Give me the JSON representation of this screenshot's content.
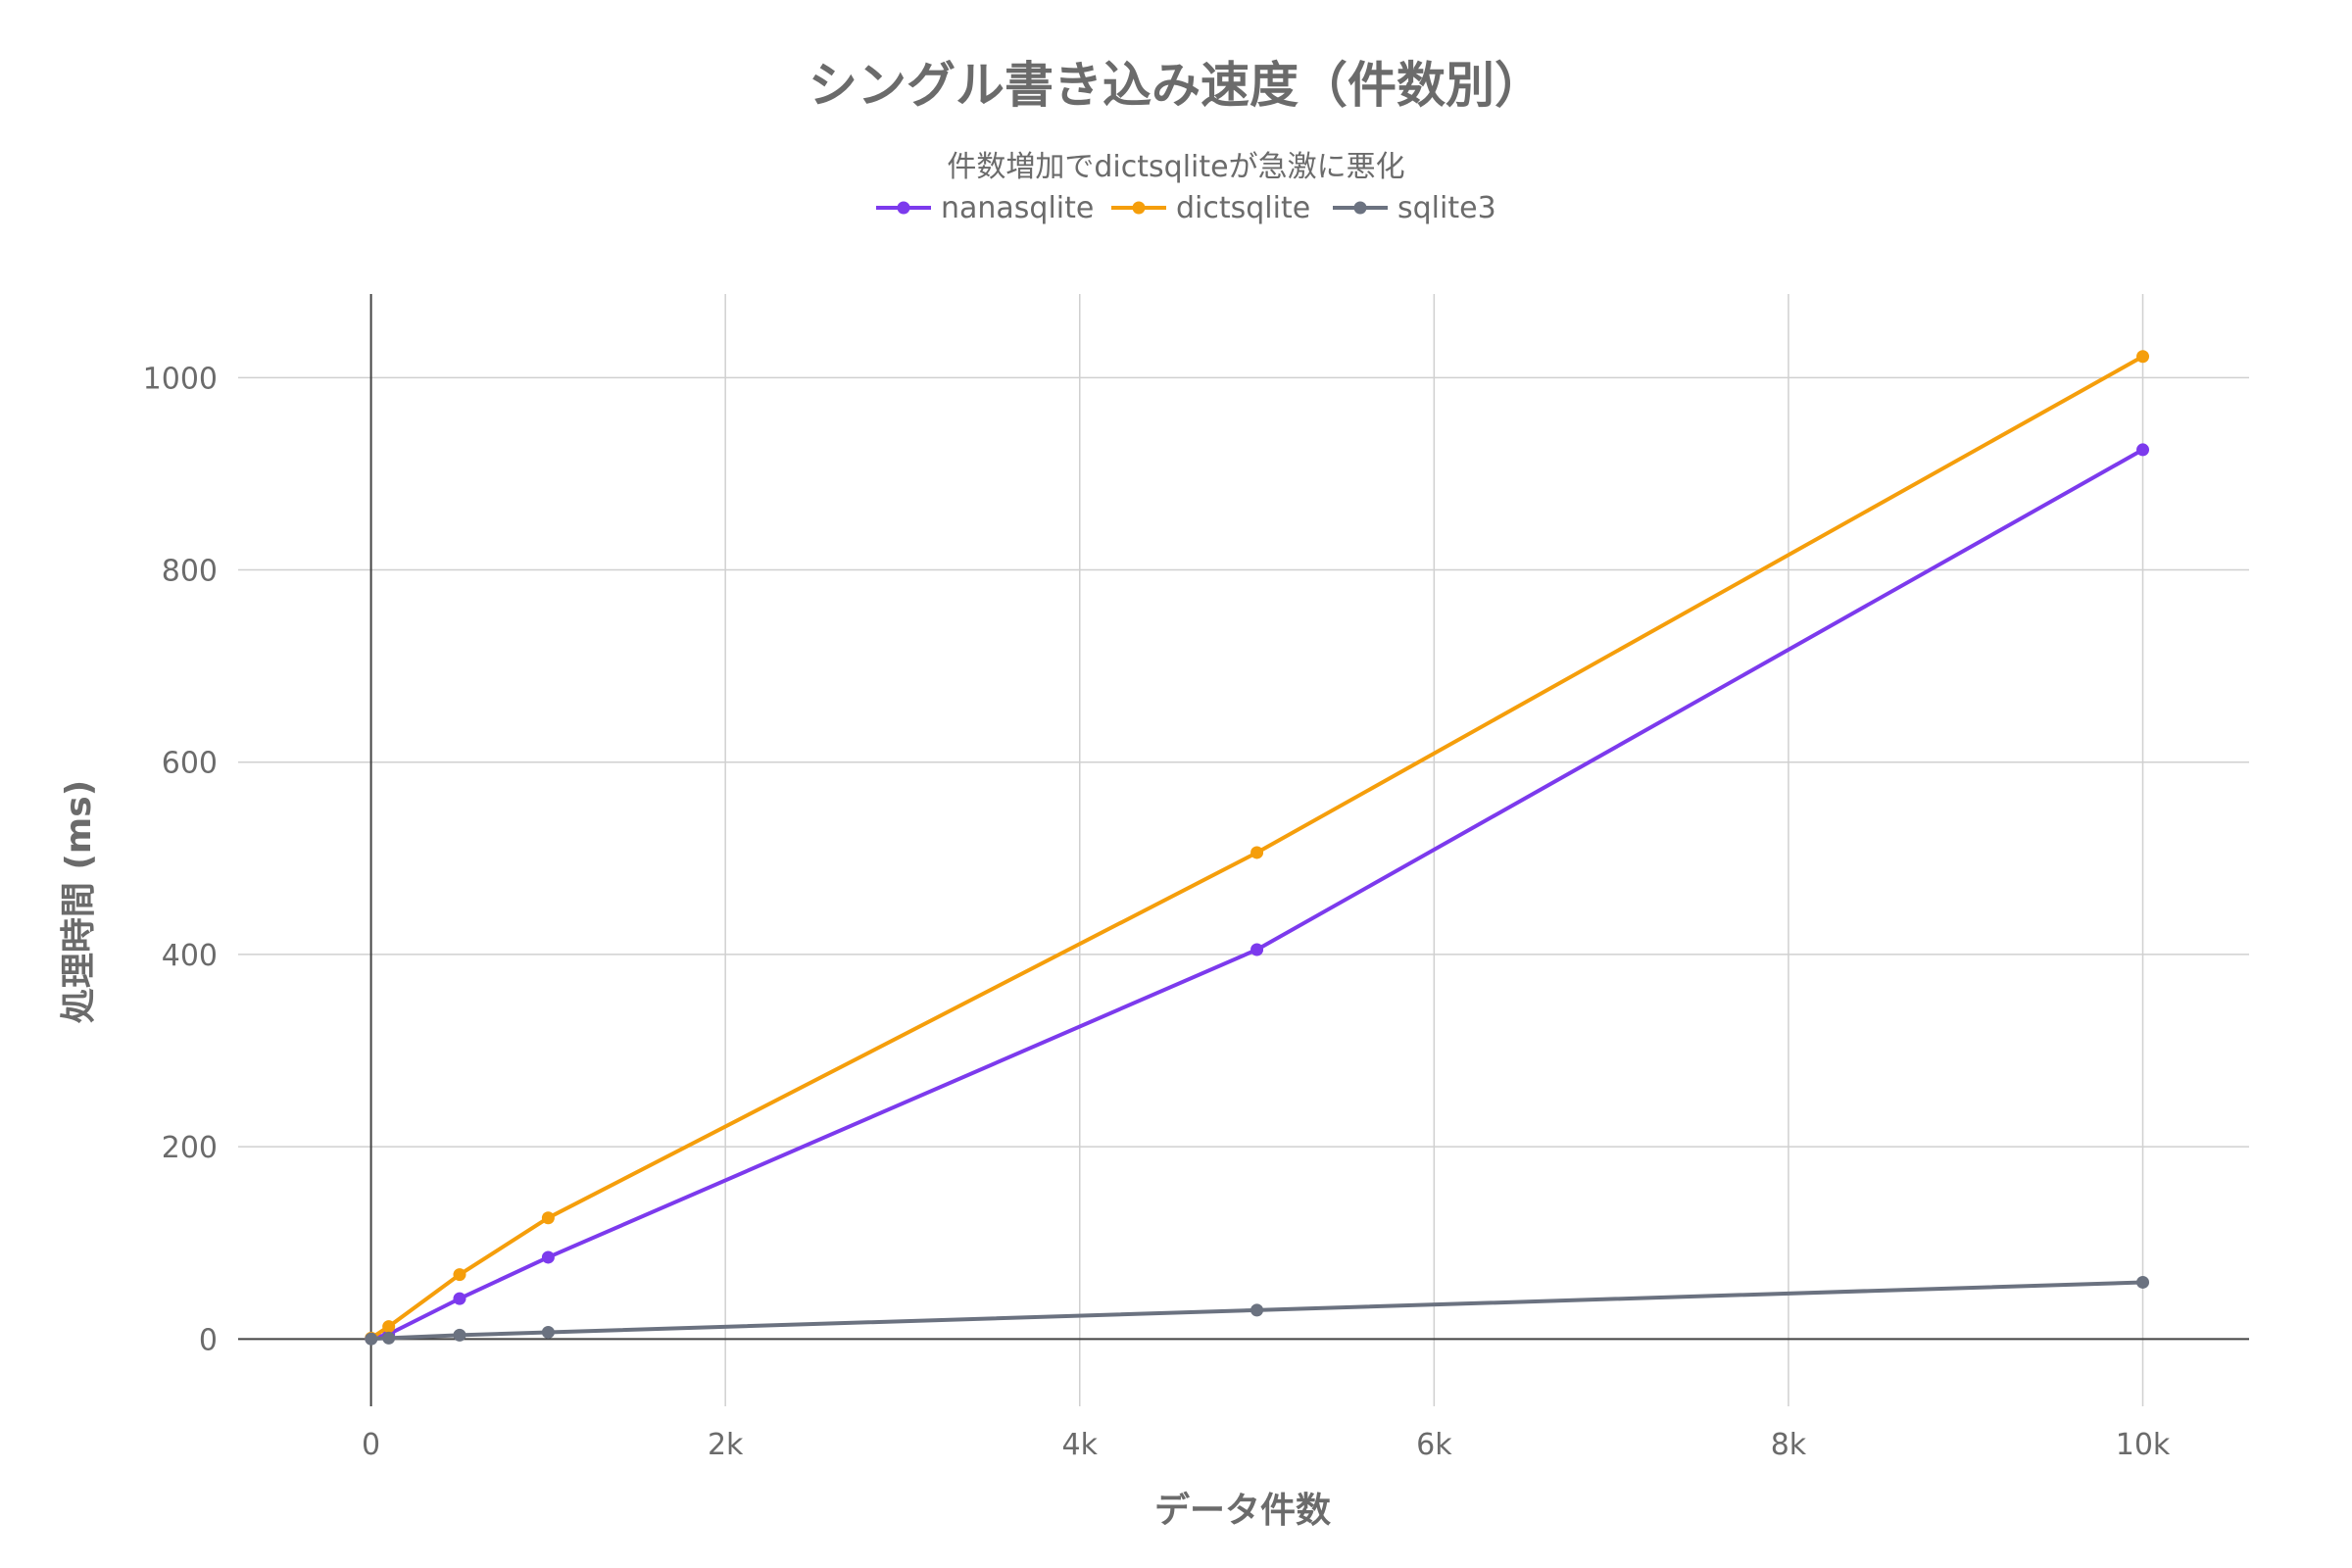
{
  "chart_data": {
    "type": "line",
    "title": "シングル書き込み速度（件数別）",
    "subtitle": "件数増加でdictsqliteが急激に悪化",
    "xlabel": "データ件数",
    "ylabel": "処理時間 (ms)",
    "xlim": [
      -750,
      10600
    ],
    "ylim": [
      -70,
      1087
    ],
    "x_ticks": [
      {
        "value": 0,
        "label": "0"
      },
      {
        "value": 2000,
        "label": "2k"
      },
      {
        "value": 4000,
        "label": "4k"
      },
      {
        "value": 6000,
        "label": "6k"
      },
      {
        "value": 8000,
        "label": "8k"
      },
      {
        "value": 10000,
        "label": "10k"
      }
    ],
    "y_ticks": [
      {
        "value": 0,
        "label": "0"
      },
      {
        "value": 200,
        "label": "200"
      },
      {
        "value": 400,
        "label": "400"
      },
      {
        "value": 600,
        "label": "600"
      },
      {
        "value": 800,
        "label": "800"
      },
      {
        "value": 1000,
        "label": "1000"
      }
    ],
    "grid": true,
    "legend_position": "top-center",
    "x": [
      1,
      100,
      500,
      1000,
      5000,
      10000
    ],
    "series": [
      {
        "name": "nanasqlite",
        "color": "#7c3aed",
        "values": [
          0.5,
          5,
          42,
          85,
          405,
          925
        ]
      },
      {
        "name": "dictsqlite",
        "color": "#f59e0b",
        "values": [
          1,
          13,
          67,
          126,
          506,
          1022
        ]
      },
      {
        "name": "sqlite3",
        "color": "#6b7280",
        "values": [
          0.1,
          1,
          4,
          7,
          30,
          59
        ]
      }
    ]
  }
}
